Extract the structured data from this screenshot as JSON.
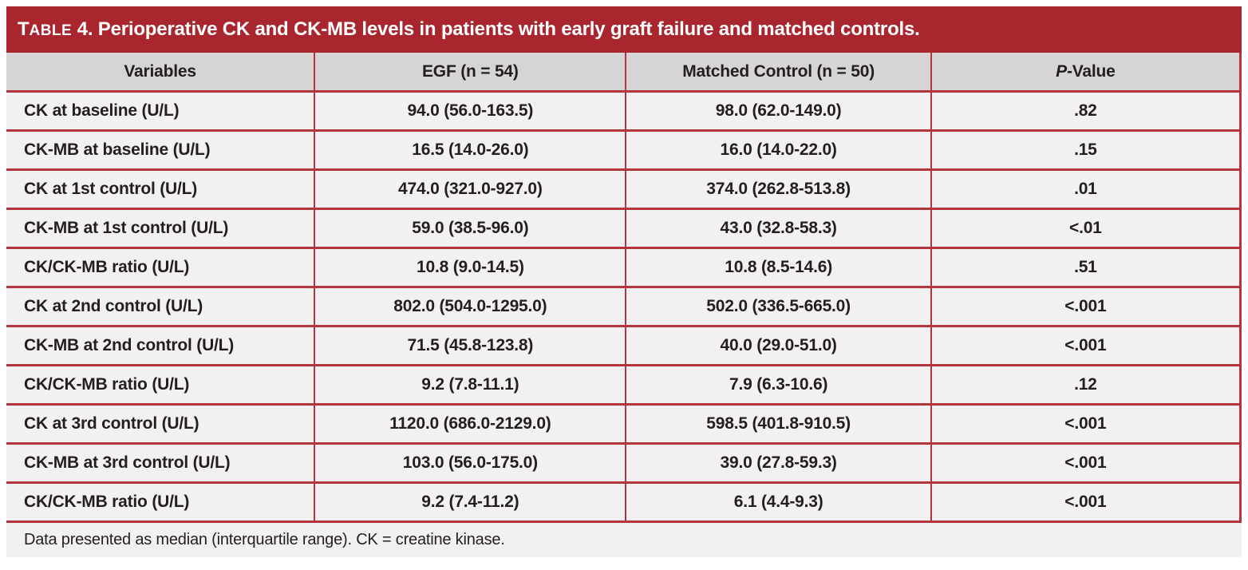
{
  "table": {
    "label": {
      "initial": "T",
      "rest": "ABLE",
      "number": "4."
    },
    "title": "Perioperative CK and CK-MB levels in patients with early graft failure and matched controls.",
    "columns": {
      "variables": "Variables",
      "egf": "EGF (n = 54)",
      "control": "Matched Control (n = 50)",
      "p_italic": "P",
      "p_rest": "-Value"
    },
    "rows": [
      {
        "variable": "CK at baseline (U/L)",
        "egf": "94.0 (56.0-163.5)",
        "control": "98.0 (62.0-149.0)",
        "p": ".82"
      },
      {
        "variable": "CK-MB at baseline (U/L)",
        "egf": "16.5 (14.0-26.0)",
        "control": "16.0 (14.0-22.0)",
        "p": ".15"
      },
      {
        "variable": "CK at 1st control (U/L)",
        "egf": "474.0 (321.0-927.0)",
        "control": "374.0 (262.8-513.8)",
        "p": ".01"
      },
      {
        "variable": "CK-MB at 1st control (U/L)",
        "egf": "59.0 (38.5-96.0)",
        "control": "43.0 (32.8-58.3)",
        "p": "<.01"
      },
      {
        "variable": "CK/CK-MB ratio (U/L)",
        "egf": "10.8 (9.0-14.5)",
        "control": "10.8 (8.5-14.6)",
        "p": ".51"
      },
      {
        "variable": "CK at 2nd control (U/L)",
        "egf": "802.0 (504.0-1295.0)",
        "control": "502.0 (336.5-665.0)",
        "p": "<.001"
      },
      {
        "variable": "CK-MB at 2nd control (U/L)",
        "egf": "71.5 (45.8-123.8)",
        "control": "40.0 (29.0-51.0)",
        "p": "<.001"
      },
      {
        "variable": "CK/CK-MB ratio (U/L)",
        "egf": "9.2 (7.8-11.1)",
        "control": "7.9 (6.3-10.6)",
        "p": ".12"
      },
      {
        "variable": "CK at 3rd control (U/L)",
        "egf": "1120.0 (686.0-2129.0)",
        "control": "598.5 (401.8-910.5)",
        "p": "<.001"
      },
      {
        "variable": "CK-MB at 3rd control (U/L)",
        "egf": "103.0 (56.0-175.0)",
        "control": "39.0 (27.8-59.3)",
        "p": "<.001"
      },
      {
        "variable": "CK/CK-MB ratio (U/L)",
        "egf": "9.2 (7.4-11.2)",
        "control": "6.1 (4.4-9.3)",
        "p": "<.001"
      }
    ],
    "footnote": "Data presented as median (interquartile range). CK = creatine kinase.",
    "colors": {
      "header_bar": "#A9262F",
      "grid_line": "#B23540",
      "column_header_bg": "#D6D4D5",
      "row_bg": "#F2F0F1",
      "body_text": "#231F20",
      "title_text": "#FFFFFF",
      "page_bg": "#FFFFFF"
    }
  }
}
